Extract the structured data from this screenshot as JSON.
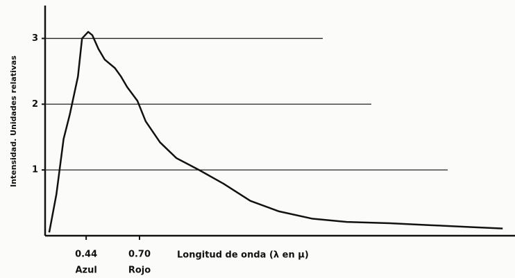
{
  "chart_data": {
    "type": "line",
    "xlabel": "Longitud de onda (λ en µ)",
    "ylabel": "Intensidad. Unidades relativas",
    "xlim": [
      0.24,
      2.53
    ],
    "ylim": [
      0,
      3.5
    ],
    "xticks": [
      {
        "value": 0.44,
        "label": "0.44"
      },
      {
        "value": 0.7,
        "label": "0.70"
      }
    ],
    "yticks": [
      1,
      2,
      3
    ],
    "grid": true,
    "annotations": [
      {
        "text": "Azul",
        "x": 0.44
      },
      {
        "text": "Rojo",
        "x": 0.7
      }
    ],
    "color": "#111111",
    "x": [
      0.26,
      0.295,
      0.33,
      0.36,
      0.4,
      0.42,
      0.45,
      0.47,
      0.5,
      0.53,
      0.58,
      0.61,
      0.64,
      0.69,
      0.73,
      0.8,
      0.88,
      0.99,
      1.11,
      1.24,
      1.38,
      1.54,
      1.71,
      1.92,
      2.12,
      2.32,
      2.47
    ],
    "values": [
      0.05,
      0.63,
      1.47,
      1.84,
      2.42,
      3.0,
      3.1,
      3.05,
      2.84,
      2.68,
      2.55,
      2.42,
      2.26,
      2.05,
      1.74,
      1.42,
      1.18,
      1.0,
      0.79,
      0.53,
      0.37,
      0.26,
      0.21,
      0.19,
      0.16,
      0.13,
      0.11
    ]
  }
}
